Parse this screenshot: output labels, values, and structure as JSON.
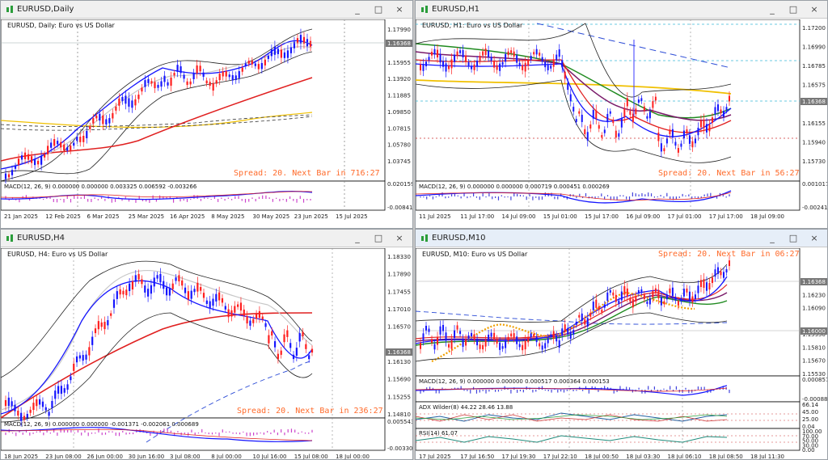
{
  "windows": [
    {
      "id": "daily",
      "title": "EURUSD,Daily",
      "symbol_label": "EURUSD, Daily: Euro vs US Dollar",
      "spread_text": "Spread: 20. Next Bar in 716:27",
      "macd_label": "MACD(12, 26, 9) 0.000000 0.000000 0.003325 0.006592 -0.003266",
      "price_ticks": [
        "1.17990",
        "1.16368",
        "1.15955",
        "1.13920",
        "1.11885",
        "1.09850",
        "1.07815",
        "1.05780",
        "1.03745"
      ],
      "current_price": "1.16368",
      "macd_ticks": [
        "0.020159",
        "-0.008410"
      ],
      "time_ticks": [
        "21 Jan 2025",
        "12 Feb 2025",
        "6 Mar 2025",
        "25 Mar 2025",
        "16 Apr 2025",
        "8 May 2025",
        "30 May 2025",
        "23 Jun 2025",
        "15 Jul 2025"
      ]
    },
    {
      "id": "h1",
      "title": "EURUSD,H1",
      "symbol_label": "EURUSD, H1: Euro vs US Dollar",
      "spread_text": "Spread: 20. Next Bar in 56:27",
      "macd_label": "MACD(12, 26, 9) 0.000000 0.000000 0.000719 0.000451 0.000269",
      "price_ticks": [
        "1.17200",
        "1.16990",
        "1.16785",
        "1.16575",
        "1.16368",
        "1.16155",
        "1.15940",
        "1.15730"
      ],
      "current_price": "1.16368",
      "macd_ticks": [
        "0.001017",
        "-0.002415"
      ],
      "time_ticks": [
        "11 Jul 2025",
        "11 Jul 17:00",
        "14 Jul 09:00",
        "15 Jul 01:00",
        "15 Jul 17:00",
        "16 Jul 09:00",
        "17 Jul 01:00",
        "17 Jul 17:00",
        "18 Jul 09:00"
      ]
    },
    {
      "id": "h4",
      "title": "EURUSD,H4",
      "symbol_label": "EURUSD, H4: Euro vs US Dollar",
      "spread_text": "Spread: 20. Next Bar in 236:27",
      "macd_label": "MACD(12, 26, 9) 0.000000 0.000000 -0.001371 -0.002061 0.000689",
      "price_ticks": [
        "1.18330",
        "1.17890",
        "1.17455",
        "1.17010",
        "1.16570",
        "1.16368",
        "1.16130",
        "1.15690",
        "1.15255",
        "1.14810"
      ],
      "current_price": "1.16368",
      "macd_ticks": [
        "0.005543",
        "-0.003305"
      ],
      "time_ticks": [
        "18 Jun 2025",
        "23 Jun 08:00",
        "26 Jun 00:00",
        "30 Jun 16:00",
        "3 Jul 08:00",
        "8 Jul 00:00",
        "10 Jul 16:00",
        "15 Jul 08:00",
        "18 Jul 00:00"
      ]
    },
    {
      "id": "m10",
      "title": "EURUSD,M10",
      "symbol_label": "EURUSD, M10: Euro vs US Dollar",
      "spread_text": "Spread: 20. Next Bar in 06:27",
      "macd_label": "MACD(12, 26, 9) 0.000000 0.000000 0.000517 0.000364 0.000153",
      "adx_label": "ADX Wilder(8) 44.22 28.46 13.88",
      "rsi_label": "RSI(14) 61.07",
      "price_ticks": [
        "1.16368",
        "1.16230",
        "1.16090",
        "1.16000",
        "1.15950",
        "1.15810",
        "1.15670",
        "1.15530"
      ],
      "current_price": "1.16368",
      "second_price": "1.16000",
      "macd_ticks": [
        "0.000857",
        "-0.000889"
      ],
      "adx_ticks": [
        "66.14",
        "45.00",
        "25.00",
        "0.04"
      ],
      "rsi_ticks": [
        "100.00",
        "70.00",
        "50.00",
        "30.00",
        "0.00"
      ],
      "time_ticks": [
        "17 Jul 2025",
        "17 Jul 16:50",
        "17 Jul 19:30",
        "17 Jul 22:10",
        "18 Jul 00:50",
        "18 Jul 03:30",
        "18 Jul 06:10",
        "18 Jul 08:50",
        "18 Jul 11:30"
      ]
    }
  ],
  "colors": {
    "bull": "#1515ff",
    "bear": "#ff1e1e",
    "ma_red": "#e02020",
    "ma_gold": "#f0c000",
    "bands": "#222222",
    "macd_hist": "#cc44cc",
    "spread": "#ff6a2a"
  },
  "window_buttons": {
    "minimize": "_",
    "maximize": "□",
    "close": "×"
  }
}
